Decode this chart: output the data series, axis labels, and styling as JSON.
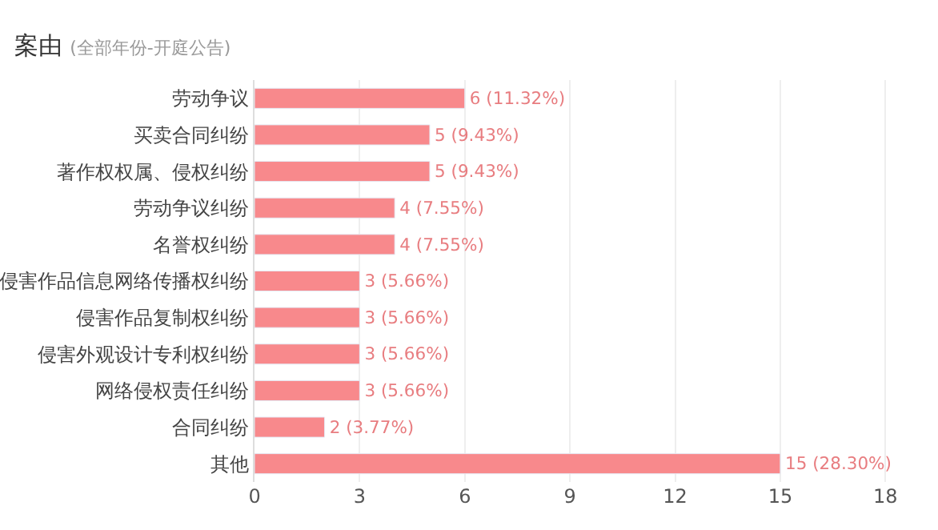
{
  "chart_data": {
    "type": "bar",
    "orientation": "horizontal",
    "title": "案由",
    "subtitle": "(全部年份-开庭公告)",
    "categories": [
      "劳动争议",
      "买卖合同纠纷",
      "著作权权属、侵权纠纷",
      "劳动争议纠纷",
      "名誉权纠纷",
      "侵害作品信息网络传播权纠纷",
      "侵害作品复制权纠纷",
      "侵害外观设计专利权纠纷",
      "网络侵权责任纠纷",
      "合同纠纷",
      "其他"
    ],
    "values": [
      6,
      5,
      5,
      4,
      4,
      3,
      3,
      3,
      3,
      2,
      15
    ],
    "value_labels": [
      "6 (11.32%)",
      "5 (9.43%)",
      "5 (9.43%)",
      "4 (7.55%)",
      "4 (7.55%)",
      "3 (5.66%)",
      "3 (5.66%)",
      "3 (5.66%)",
      "3 (5.66%)",
      "2 (3.77%)",
      "15 (28.30%)"
    ],
    "color": "#f8898c",
    "xlim": [
      0,
      19.5
    ],
    "xticks": [
      0,
      3,
      6,
      9,
      12,
      15,
      18
    ],
    "grid": "x"
  }
}
